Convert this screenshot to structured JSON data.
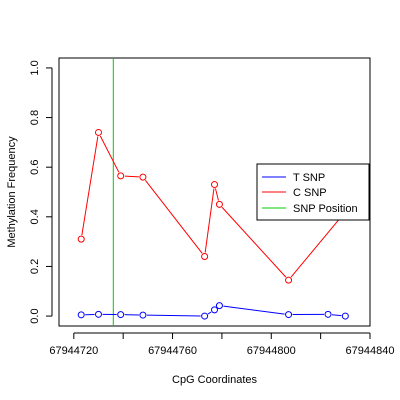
{
  "chart_data": {
    "type": "line",
    "title": "",
    "xlabel": "CpG Coordinates",
    "ylabel": "Methylation Frequency",
    "xlim": [
      67944714,
      67944840
    ],
    "ylim": [
      -0.04,
      1.04
    ],
    "x_ticks": [
      67944720,
      67944740,
      67944760,
      67944780,
      67944800,
      67944820,
      67944840
    ],
    "x_tick_labels": [
      "67944720",
      "67944760",
      "67944800",
      "67944840"
    ],
    "y_ticks": [
      0.0,
      0.2,
      0.4,
      0.6,
      0.8,
      1.0
    ],
    "y_tick_labels": [
      "0.0",
      "0.2",
      "0.4",
      "0.6",
      "0.8",
      "1.0"
    ],
    "grid": false,
    "legend_position": "right",
    "snp_position": 67944736,
    "series": [
      {
        "name": "T SNP",
        "color": "#0000ff",
        "x": [
          67944723,
          67944730,
          67944739,
          67944748,
          67944773,
          67944777,
          67944779,
          67944807,
          67944823,
          67944830
        ],
        "y": [
          0.005,
          0.007,
          0.006,
          0.004,
          0.0,
          0.025,
          0.042,
          0.006,
          0.007,
          0.0
        ]
      },
      {
        "name": "C SNP",
        "color": "#ff0000",
        "x": [
          67944723,
          67944730,
          67944739,
          67944748,
          67944773,
          67944777,
          67944779,
          67944807,
          67944823,
          67944830
        ],
        "y": [
          0.31,
          0.74,
          0.565,
          0.56,
          0.24,
          0.53,
          0.45,
          0.145,
          null,
          0.42
        ]
      }
    ],
    "legend": [
      {
        "label": "T SNP",
        "color": "#0000ff"
      },
      {
        "label": "C SNP",
        "color": "#ff0000"
      },
      {
        "label": "SNP Position",
        "color": "#00cc00"
      }
    ]
  }
}
